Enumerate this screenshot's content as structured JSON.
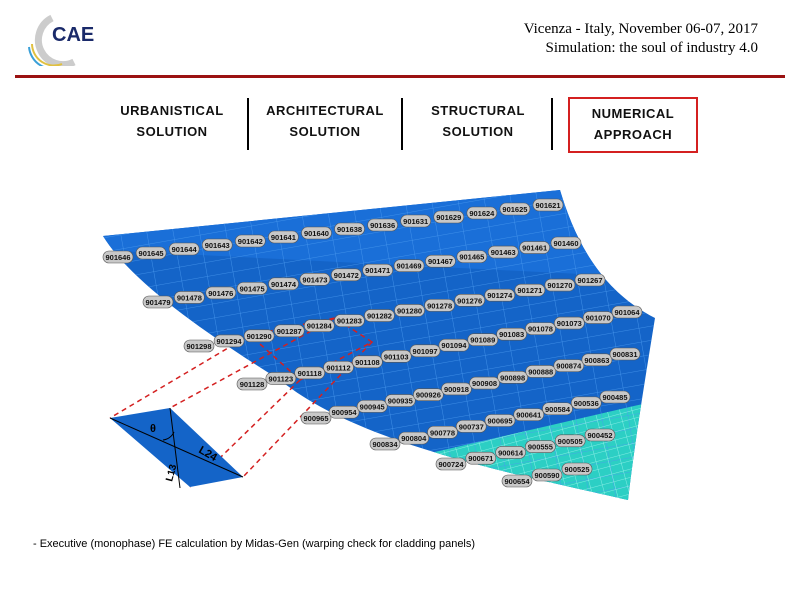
{
  "header": {
    "line1": "Vicenza - Italy, November 06-07, 2017",
    "line2": "Simulation: the soul of industry 4.0",
    "logo_text": "CAE"
  },
  "nav": [
    {
      "line1": "URBANISTICAL",
      "line2": "SOLUTION",
      "active": false
    },
    {
      "line1": "ARCHITECTURAL",
      "line2": "SOLUTION",
      "active": false
    },
    {
      "line1": "STRUCTURAL",
      "line2": "SOLUTION",
      "active": false
    },
    {
      "line1": "NUMERICAL",
      "line2": "APPROACH",
      "active": true
    }
  ],
  "colors": {
    "accent": "#9b1212",
    "mesh": "#1464c8",
    "mesh_highlight": "#2ccfc4",
    "dashed": "#d42020"
  },
  "diagram": {
    "node_rows": [
      [
        "901646",
        "901645",
        "901644",
        "901643",
        "901642",
        "901641",
        "901640",
        "901638",
        "901636",
        "901631",
        "901629",
        "901624",
        "901625",
        "901621"
      ],
      [
        "901479",
        "901478",
        "901476",
        "901475",
        "901474",
        "901473",
        "901472",
        "901471",
        "901469",
        "901467",
        "901465",
        "901463",
        "901461",
        "901460"
      ],
      [
        "901298",
        "901294",
        "901290",
        "901287",
        "901284",
        "901283",
        "901282",
        "901280",
        "901278",
        "901276",
        "901274",
        "901271",
        "901270",
        "901267"
      ],
      [
        "901128",
        "901123",
        "901118",
        "901112",
        "901108",
        "901103",
        "901097",
        "901094",
        "901089",
        "901083",
        "901078",
        "901073",
        "901070",
        "901064"
      ],
      [
        "900965",
        "900954",
        "900945",
        "900935",
        "900926",
        "900918",
        "900908",
        "900898",
        "900888",
        "900874",
        "900863",
        "900831"
      ],
      [
        "900834",
        "900804",
        "900778",
        "900737",
        "900695",
        "900641",
        "900584",
        "900536",
        "900485"
      ],
      [
        "900724",
        "900671",
        "900614",
        "900555",
        "900505",
        "900452"
      ],
      [
        "900654",
        "900590",
        "900525"
      ]
    ],
    "panel_labels": {
      "angle": "θ",
      "diag1": "L24",
      "diag2": "L13"
    }
  },
  "footnote": "- Executive (monophase) FE calculation by Midas-Gen (warping check for cladding panels)"
}
